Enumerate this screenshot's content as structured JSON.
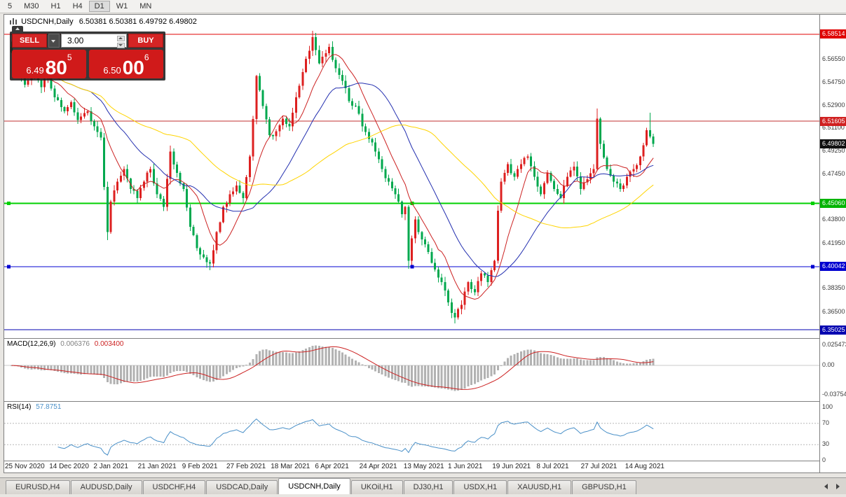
{
  "toolbar": {
    "timeframes": [
      "5",
      "M30",
      "H1",
      "H4",
      "D1",
      "W1",
      "MN"
    ],
    "active": "D1"
  },
  "chart_header": {
    "title": "USDCNH,Daily",
    "ohlc": "6.50381 6.50381 6.49792 6.49802"
  },
  "trade_panel": {
    "sell_label": "SELL",
    "buy_label": "BUY",
    "volume": "3.00",
    "sell_price": {
      "small": "6.49",
      "big": "80",
      "sup": "5"
    },
    "buy_price": {
      "small": "6.50",
      "big": "00",
      "sup": "6"
    }
  },
  "chart_data": {
    "type": "candlestick",
    "symbol": "USDCNH",
    "timeframe": "Daily",
    "ylim": [
      6.3436,
      6.6007
    ],
    "x_tick_labels": [
      "25 Nov 2020",
      "14 Dec 2020",
      "2 Jan 2021",
      "21 Jan 2021",
      "9 Feb 2021",
      "27 Feb 2021",
      "18 Mar 2021",
      "6 Apr 2021",
      "24 Apr 2021",
      "13 May 2021",
      "1 Jun 2021",
      "19 Jun 2021",
      "8 Jul 2021",
      "27 Jul 2021",
      "14 Aug 2021"
    ],
    "y_axis_labels": [
      "6.56550",
      "6.54750",
      "6.52900",
      "6.51100",
      "6.49250",
      "6.47450",
      "6.43800",
      "6.41950",
      "6.38350",
      "6.36500"
    ],
    "price_tags": [
      {
        "text": "6.58514",
        "price": 6.58514,
        "bg": "#e00000"
      },
      {
        "text": "6.51605",
        "price": 6.51605,
        "bg": "#d02020"
      },
      {
        "text": "6.49802",
        "price": 6.49802,
        "bg": "#101010"
      },
      {
        "text": "6.45060",
        "price": 6.4506,
        "bg": "#00b400"
      },
      {
        "text": "6.40042",
        "price": 6.40042,
        "bg": "#0000d0"
      },
      {
        "text": "6.35025",
        "price": 6.35025,
        "bg": "#0000b0"
      }
    ],
    "hlines": [
      {
        "price": 6.58514,
        "color": "#e00000",
        "width": 1,
        "handles": false
      },
      {
        "price": 6.51605,
        "color": "#c03030",
        "width": 1,
        "handles": false
      },
      {
        "price": 6.4506,
        "color": "#00d000",
        "width": 2,
        "handles": true
      },
      {
        "price": 6.40042,
        "color": "#0000d0",
        "width": 1,
        "handles": true
      },
      {
        "price": 6.35025,
        "color": "#0000b0",
        "width": 1,
        "handles": false
      }
    ],
    "current_price": 6.49802,
    "candle_count": 195,
    "colors": {
      "up": "#dd2020",
      "down": "#00a84e"
    },
    "candles_keypoints": [
      [
        0,
        6.571
      ],
      [
        2,
        6.558
      ],
      [
        4,
        6.545
      ],
      [
        7,
        6.556
      ],
      [
        9,
        6.543
      ],
      [
        11,
        6.552
      ],
      [
        13,
        6.535
      ],
      [
        16,
        6.524
      ],
      [
        18,
        6.531
      ],
      [
        20,
        6.517
      ],
      [
        23,
        6.524
      ],
      [
        25,
        6.512
      ],
      [
        27,
        6.503
      ],
      [
        29,
        6.428
      ],
      [
        30,
        6.452
      ],
      [
        32,
        6.468
      ],
      [
        34,
        6.478
      ],
      [
        36,
        6.462
      ],
      [
        38,
        6.455
      ],
      [
        40,
        6.468
      ],
      [
        42,
        6.478
      ],
      [
        44,
        6.458
      ],
      [
        46,
        6.448
      ],
      [
        48,
        6.492
      ],
      [
        50,
        6.475
      ],
      [
        52,
        6.462
      ],
      [
        54,
        6.432
      ],
      [
        56,
        6.415
      ],
      [
        58,
        6.408
      ],
      [
        60,
        6.403
      ],
      [
        62,
        6.428
      ],
      [
        64,
        6.448
      ],
      [
        66,
        6.458
      ],
      [
        68,
        6.465
      ],
      [
        70,
        6.455
      ],
      [
        72,
        6.488
      ],
      [
        74,
        6.552
      ],
      [
        76,
        6.528
      ],
      [
        78,
        6.505
      ],
      [
        80,
        6.508
      ],
      [
        82,
        6.518
      ],
      [
        84,
        6.512
      ],
      [
        86,
        6.535
      ],
      [
        88,
        6.555
      ],
      [
        90,
        6.572
      ],
      [
        91,
        6.583
      ],
      [
        93,
        6.562
      ],
      [
        95,
        6.57
      ],
      [
        96,
        6.575
      ],
      [
        98,
        6.558
      ],
      [
        100,
        6.548
      ],
      [
        102,
        6.532
      ],
      [
        104,
        6.528
      ],
      [
        106,
        6.512
      ],
      [
        108,
        6.502
      ],
      [
        110,
        6.492
      ],
      [
        112,
        6.478
      ],
      [
        114,
        6.468
      ],
      [
        116,
        6.458
      ],
      [
        118,
        6.442
      ],
      [
        119,
        6.448
      ],
      [
        120,
        6.405
      ],
      [
        122,
        6.438
      ],
      [
        124,
        6.422
      ],
      [
        126,
        6.412
      ],
      [
        128,
        6.398
      ],
      [
        130,
        6.388
      ],
      [
        132,
        6.372
      ],
      [
        134,
        6.36
      ],
      [
        136,
        6.37
      ],
      [
        138,
        6.388
      ],
      [
        140,
        6.38
      ],
      [
        142,
        6.395
      ],
      [
        144,
        6.388
      ],
      [
        146,
        6.405
      ],
      [
        147,
        6.445
      ],
      [
        148,
        6.468
      ],
      [
        150,
        6.482
      ],
      [
        152,
        6.472
      ],
      [
        154,
        6.482
      ],
      [
        156,
        6.488
      ],
      [
        158,
        6.472
      ],
      [
        160,
        6.458
      ],
      [
        162,
        6.475
      ],
      [
        164,
        6.462
      ],
      [
        166,
        6.455
      ],
      [
        168,
        6.472
      ],
      [
        170,
        6.48
      ],
      [
        172,
        6.462
      ],
      [
        174,
        6.47
      ],
      [
        176,
        6.478
      ],
      [
        177,
        6.518
      ],
      [
        178,
        6.498
      ],
      [
        180,
        6.478
      ],
      [
        182,
        6.468
      ],
      [
        184,
        6.462
      ],
      [
        186,
        6.472
      ],
      [
        188,
        6.478
      ],
      [
        190,
        6.488
      ],
      [
        192,
        6.509
      ],
      [
        193,
        6.504
      ],
      [
        194,
        6.498
      ]
    ],
    "wick_overrides": {
      "29": [
        0,
        0.004
      ],
      "60": [
        0,
        0.003
      ],
      "91": [
        0.003,
        0
      ],
      "120": [
        0,
        0.003
      ],
      "134": [
        0,
        0.004
      ],
      "177": [
        0.006,
        0
      ],
      "193": [
        0.011,
        0
      ]
    },
    "moving_averages": [
      {
        "period": 10,
        "color": "#cc2222"
      },
      {
        "period": 25,
        "color": "#2430b0"
      },
      {
        "period": 55,
        "color": "#ffd400"
      }
    ],
    "indicators": {
      "macd": {
        "label": "MACD(12,26,9)",
        "value_main": "0.006376",
        "value_signal": "0.003400",
        "fast": 12,
        "slow": 26,
        "signal": 9,
        "histogram_color": "#b2b2b2",
        "signal_color": "#cc2222",
        "scale_labels": [
          {
            "value": 0.025473,
            "text": "0.025473"
          },
          {
            "value": 0,
            "text": "0.00"
          },
          {
            "value": -0.037543,
            "text": "-0.037543"
          }
        ]
      },
      "rsi": {
        "label": "RSI(14)",
        "value": "57.8751",
        "period": 14,
        "line_color": "#4a90c8",
        "levels": [
          70,
          30
        ],
        "scale_labels": [
          {
            "value": 100,
            "text": "100"
          },
          {
            "value": 70,
            "text": "70"
          },
          {
            "value": 30,
            "text": "30"
          },
          {
            "value": 0,
            "text": "0"
          }
        ]
      }
    }
  },
  "tabs": {
    "active": "USDCNH,Daily",
    "items": [
      "EURUSD,H4",
      "AUDUSD,Daily",
      "USDCHF,H4",
      "USDCAD,Daily",
      "USDCNH,Daily",
      "UKOil,H1",
      "DJ30,H1",
      "USDX,H1",
      "XAUUSD,H1",
      "GBPUSD,H1"
    ]
  }
}
